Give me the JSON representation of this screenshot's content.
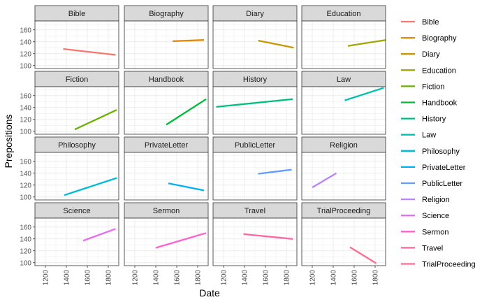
{
  "chart_data": {
    "type": "line",
    "layout": "facet_wrap",
    "facet_columns": 4,
    "xlabel": "Date",
    "ylabel": "Prepositions",
    "xlim": [
      1100,
      1900
    ],
    "ylim": [
      95,
      175
    ],
    "x_ticks": [
      1200,
      1400,
      1600,
      1800
    ],
    "y_ticks": [
      100,
      120,
      140,
      160
    ],
    "grid": true,
    "legend_position": "right",
    "series": [
      {
        "name": "Bible",
        "color": "#F8766D",
        "x": [
          1370,
          1870
        ],
        "y": [
          128,
          118
        ]
      },
      {
        "name": "Biography",
        "color": "#E58700",
        "x": [
          1560,
          1860
        ],
        "y": [
          141,
          143
        ]
      },
      {
        "name": "Diary",
        "color": "#C99800",
        "x": [
          1530,
          1870
        ],
        "y": [
          142,
          130
        ]
      },
      {
        "name": "Education",
        "color": "#A3A500",
        "x": [
          1540,
          1900
        ],
        "y": [
          133,
          143
        ]
      },
      {
        "name": "Fiction",
        "color": "#6BB100",
        "x": [
          1480,
          1880
        ],
        "y": [
          103,
          136
        ]
      },
      {
        "name": "Handbook",
        "color": "#00BA38",
        "x": [
          1500,
          1880
        ],
        "y": [
          111,
          154
        ]
      },
      {
        "name": "History",
        "color": "#00BF7D",
        "x": [
          1130,
          1860
        ],
        "y": [
          141,
          154
        ]
      },
      {
        "name": "Law",
        "color": "#00C0AF",
        "x": [
          1510,
          1880
        ],
        "y": [
          152,
          173
        ]
      },
      {
        "name": "Philosophy",
        "color": "#00BCD8",
        "x": [
          1380,
          1880
        ],
        "y": [
          103,
          132
        ]
      },
      {
        "name": "PrivateLetter",
        "color": "#00B0F6",
        "x": [
          1520,
          1860
        ],
        "y": [
          123,
          111
        ]
      },
      {
        "name": "PublicLetter",
        "color": "#619CFF",
        "x": [
          1530,
          1850
        ],
        "y": [
          139,
          146
        ]
      },
      {
        "name": "Religion",
        "color": "#B983FF",
        "x": [
          1200,
          1430
        ],
        "y": [
          116,
          140
        ]
      },
      {
        "name": "Science",
        "color": "#E76BF3",
        "x": [
          1560,
          1870
        ],
        "y": [
          137,
          157
        ]
      },
      {
        "name": "Sermon",
        "color": "#FD61D1",
        "x": [
          1400,
          1880
        ],
        "y": [
          125,
          150
        ]
      },
      {
        "name": "Travel",
        "color": "#FF67A4",
        "x": [
          1390,
          1860
        ],
        "y": [
          148,
          140
        ]
      },
      {
        "name": "TrialProceeding",
        "color": "#FF6C91",
        "x": [
          1560,
          1810
        ],
        "y": [
          126,
          99
        ]
      }
    ]
  }
}
